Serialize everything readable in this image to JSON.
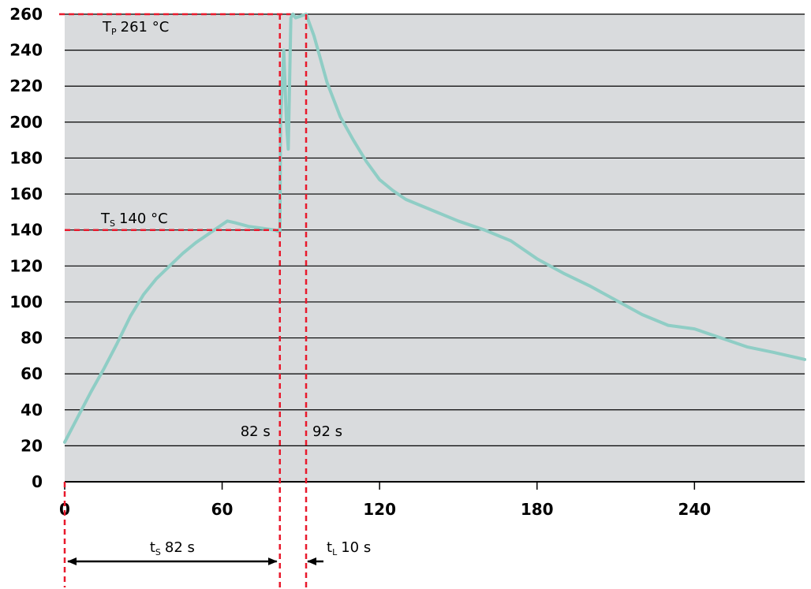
{
  "chart_data": {
    "type": "line",
    "ylim": [
      0,
      260
    ],
    "xlim": [
      0,
      282
    ],
    "y_ticks": [
      "0",
      "20",
      "40",
      "60",
      "80",
      "100",
      "120",
      "140",
      "160",
      "180",
      "200",
      "220",
      "240",
      "260"
    ],
    "x_ticks": [
      "0",
      "60",
      "120",
      "180",
      "240"
    ],
    "grid": "horizontal",
    "colors": {
      "plot_bg": "#d9dbdd",
      "curve": "#8fcdc5",
      "marker": "#e8192c",
      "gridline": "#000000"
    },
    "series": [
      {
        "x": [
          0,
          5,
          10,
          15,
          20,
          25,
          30,
          35,
          40,
          45,
          50,
          55,
          60,
          62,
          65,
          70,
          75,
          80,
          82,
          82.3,
          83.5,
          84.5,
          85.2,
          86.2,
          87,
          88,
          90,
          92,
          95,
          100,
          105,
          110,
          115,
          120,
          125,
          130,
          140,
          150,
          160,
          170,
          180,
          190,
          200,
          210,
          220,
          230,
          240,
          250,
          260,
          270,
          282
        ],
        "y": [
          22,
          36,
          50,
          63,
          77,
          92,
          104,
          113,
          120,
          127,
          133,
          138,
          143,
          145,
          144,
          142,
          141,
          140,
          139,
          200,
          240,
          200,
          185,
          258,
          260,
          258,
          259,
          260,
          248,
          222,
          203,
          190,
          178,
          168,
          162,
          157,
          151,
          145,
          140,
          134,
          124,
          116,
          109,
          101,
          93,
          87,
          85,
          80,
          75,
          72,
          68
        ]
      }
    ],
    "markers": {
      "tp_label_main": "T",
      "tp_label_sub": "P",
      "tp_label_value": "261 °C",
      "tp_value": 261,
      "ts_label_main": "T",
      "ts_label_sub": "S",
      "ts_label_value": "140 °C",
      "ts_value": 140,
      "x1_label": "82 s",
      "x1_value": 82,
      "x2_label": "92 s",
      "x2_value": 92,
      "ts_duration_main": "t",
      "ts_duration_sub": "S",
      "ts_duration_value": "82 s",
      "tl_duration_main": "t",
      "tl_duration_sub": "L",
      "tl_duration_value": "10 s"
    }
  }
}
